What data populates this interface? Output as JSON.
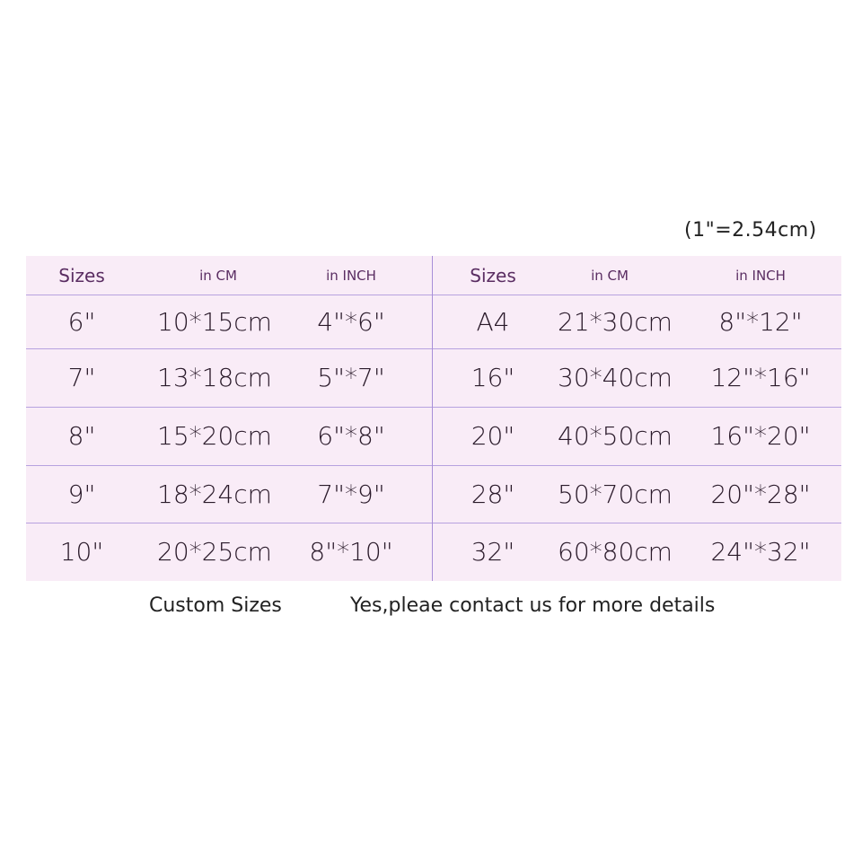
{
  "conversion_note": "(1\"=2.54cm)",
  "headers": [
    "Sizes",
    "in CM",
    "in INCH",
    "Sizes",
    "in CM",
    "in INCH"
  ],
  "rows": [
    [
      "6\"",
      "10*15cm",
      "4\"*6\"",
      "A4",
      "21*30cm",
      "8\"*12\""
    ],
    [
      "7\"",
      "13*18cm",
      "5\"*7\"",
      "16\"",
      "30*40cm",
      "12\"*16\""
    ],
    [
      "8\"",
      "15*20cm",
      "6\"*8\"",
      "20\"",
      "40*50cm",
      "16\"*20\""
    ],
    [
      "9\"",
      "18*24cm",
      "7\"*9\"",
      "28\"",
      "50*70cm",
      "20\"*28\""
    ],
    [
      "10\"",
      "20*25cm",
      "8\"*10\"",
      "32\"",
      "60*80cm",
      "24\"*32\""
    ]
  ],
  "footer": {
    "label": "Custom Sizes",
    "text": "Yes,pleae contact us for more details"
  },
  "colors": {
    "table_bg": "#f9ecf7",
    "grid": "#b7a2e0",
    "header_text": "#5a2d62"
  }
}
